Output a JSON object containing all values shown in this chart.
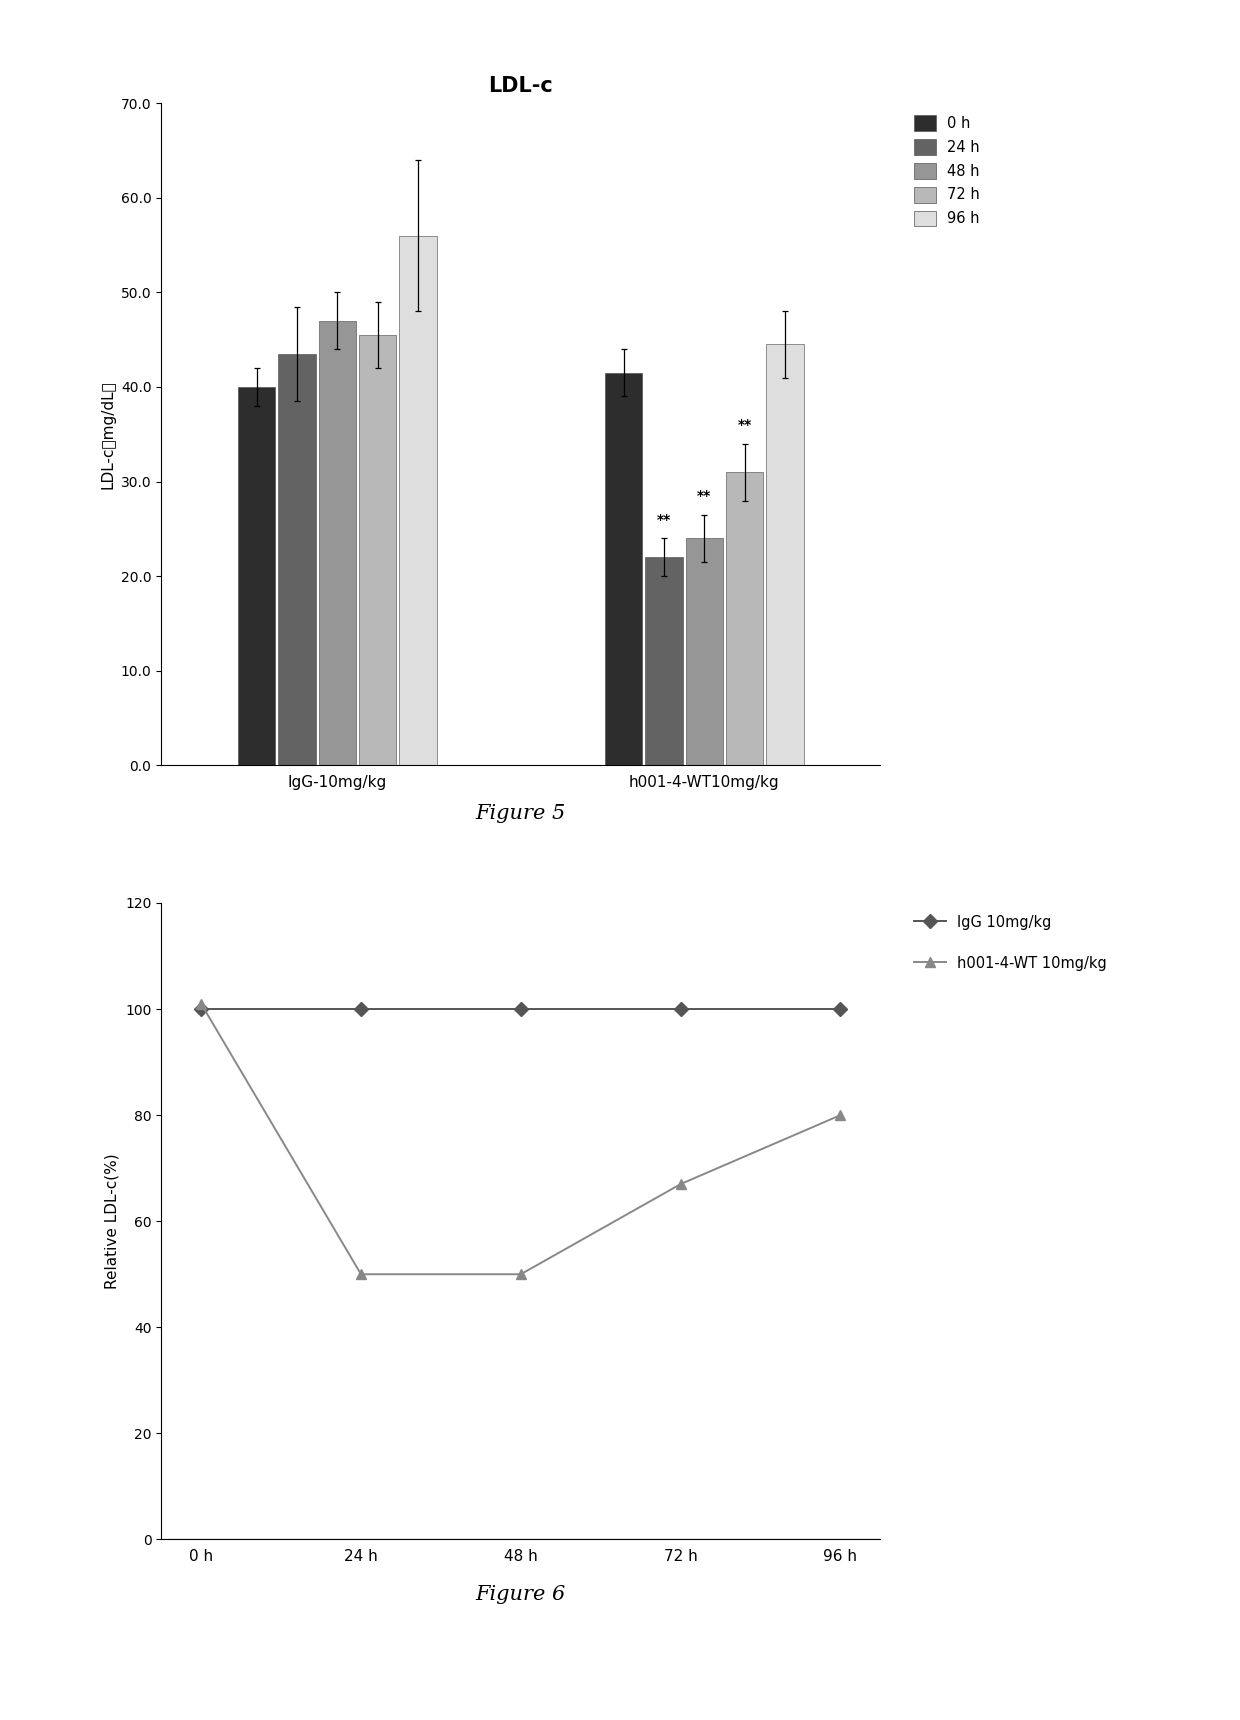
{
  "fig5": {
    "title": "LDL-c",
    "ylabel": "LDL-c（mg/dL）",
    "groups": [
      "IgG-10mg/kg",
      "h001-4-WT10mg/kg"
    ],
    "time_labels": [
      "0 h",
      "24 h",
      "48 h",
      "72 h",
      "96 h"
    ],
    "bar_colors": [
      "#2d2d2d",
      "#636363",
      "#969696",
      "#b8b8b8",
      "#dedede"
    ],
    "bar_values": [
      [
        40.0,
        43.5,
        47.0,
        45.5,
        56.0
      ],
      [
        41.5,
        22.0,
        24.0,
        31.0,
        44.5
      ]
    ],
    "bar_errors": [
      [
        2.0,
        5.0,
        3.0,
        3.5,
        8.0
      ],
      [
        2.5,
        2.0,
        2.5,
        3.0,
        3.5
      ]
    ],
    "sig_indices": [
      1,
      2,
      3
    ],
    "sig_labels": [
      "**",
      "**",
      "**"
    ],
    "ylim": [
      0,
      70.0
    ],
    "yticks": [
      0.0,
      10.0,
      20.0,
      30.0,
      40.0,
      50.0,
      60.0,
      70.0
    ],
    "figure_label": "Figure 5"
  },
  "fig6": {
    "xlabel_vals": [
      "0 h",
      "24 h",
      "48 h",
      "72 h",
      "96 h"
    ],
    "ylabel": "Relative LDL-c(%)",
    "series_names": [
      "IgG 10mg/kg",
      "h001-4-WT 10mg/kg"
    ],
    "series_values": [
      [
        100,
        100,
        100,
        100,
        100
      ],
      [
        101,
        50,
        50,
        67,
        80
      ]
    ],
    "series_colors": [
      "#555555",
      "#888888"
    ],
    "series_markers": [
      "D",
      "^"
    ],
    "ylim": [
      0,
      120
    ],
    "yticks": [
      0,
      20,
      40,
      60,
      80,
      100,
      120
    ],
    "figure_label": "Figure 6"
  },
  "bg_color": "#ffffff"
}
